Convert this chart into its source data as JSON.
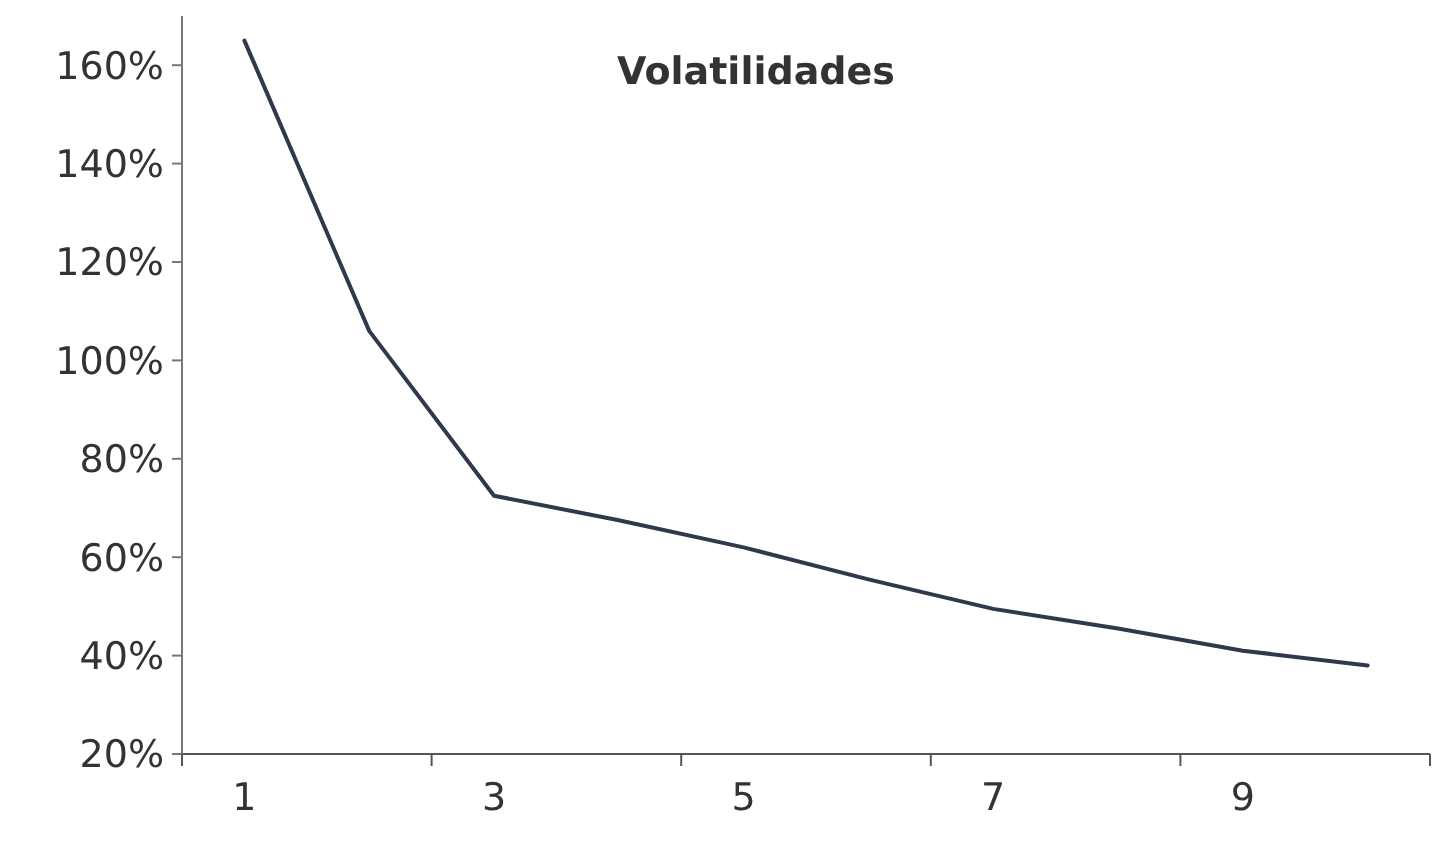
{
  "chart_data": {
    "type": "line",
    "title": "Volatilidades",
    "categories": [
      "1",
      null,
      "3",
      null,
      "5",
      null,
      "7",
      null,
      "9",
      null
    ],
    "series": [
      {
        "color": "#2e3a4c",
        "values": [
          165,
          106,
          72.5,
          67.5,
          62,
          55.5,
          49.5,
          45.5,
          41,
          38
        ]
      }
    ],
    "ylim": [
      20,
      170
    ],
    "yticks": [
      {
        "value": 20,
        "label": "20%"
      },
      {
        "value": 40,
        "label": "40%"
      },
      {
        "value": 60,
        "label": "60%"
      },
      {
        "value": 80,
        "label": "80%"
      },
      {
        "value": 100,
        "label": "100%"
      },
      {
        "value": 120,
        "label": "120%"
      },
      {
        "value": 140,
        "label": "140%"
      },
      {
        "value": 160,
        "label": "160%"
      }
    ],
    "grid": false,
    "marker": "none",
    "line_style": "solid"
  }
}
